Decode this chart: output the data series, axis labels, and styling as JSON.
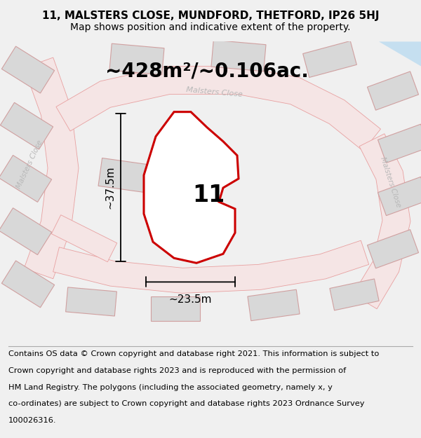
{
  "title_line1": "11, MALSTERS CLOSE, MUNDFORD, THETFORD, IP26 5HJ",
  "title_line2": "Map shows position and indicative extent of the property.",
  "area_text": "~428m²/~0.106ac.",
  "number_label": "11",
  "dim_vertical": "~37.5m",
  "dim_horizontal": "~23.5m",
  "footer_text": "Contains OS data © Crown copyright and database right 2021. This information is subject to Crown copyright and database rights 2023 and is reproduced with the permission of HM Land Registry. The polygons (including the associated geometry, namely x, y co-ordinates) are subject to Crown copyright and database rights 2023 Ordnance Survey 100026316.",
  "bg_color": "#f0f0f0",
  "map_bg": "#ffffff",
  "road_color": "#e8a0a0",
  "road_fill": "#f5e5e5",
  "building_fill": "#d8d8d8",
  "building_edge": "#d0a0a0",
  "plot_color": "#cc0000",
  "blue_area": "#c5dff0",
  "street_label_color": "#b8b8b8",
  "title_fontsize": 11,
  "subtitle_fontsize": 10,
  "area_fontsize": 20,
  "number_fontsize": 24,
  "dim_fontsize": 11,
  "footer_fontsize": 8.2
}
